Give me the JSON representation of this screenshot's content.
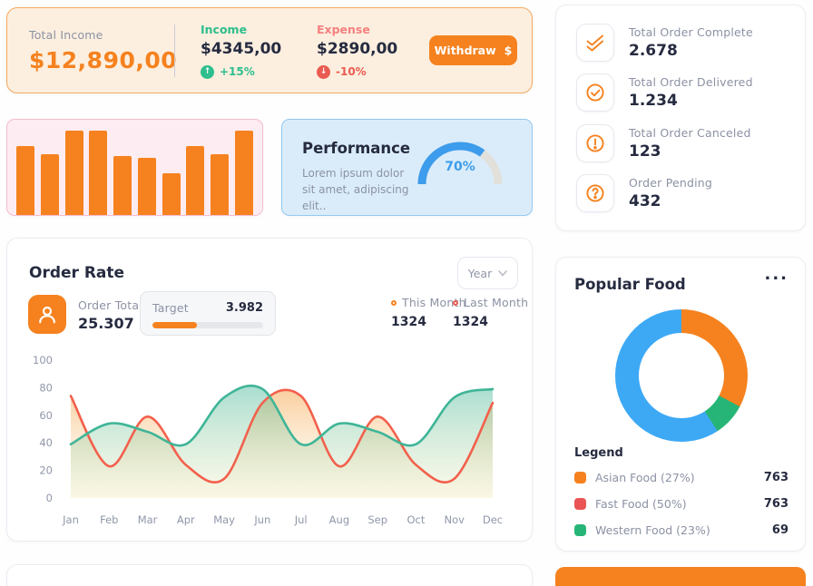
{
  "colors": {
    "accent_orange": "#f5821f",
    "navy_text": "#262b40",
    "gray_text": "#8c92a4",
    "green": "#2dbe8d",
    "red": "#ea5b51",
    "salmon_label": "#f58080",
    "peach_bg": "#fcefdf",
    "pink_bg": "#fdecf1",
    "blue_bg": "#daecfa",
    "gauge_blue": "#3d9cec",
    "donut_blue": "#3da9f5",
    "donut_green": "#27b577",
    "legend_red": "#ea5455",
    "line_red": "#f2604c",
    "line_green": "#3fb597"
  },
  "income_card": {
    "total_label": "Total Income",
    "total_value": "$12,890,00",
    "income_label": "Income",
    "income_value": "$4345,00",
    "income_change": "+15%",
    "income_arrow": "↑",
    "expense_label": "Expense",
    "expense_value": "$2890,00",
    "expense_change": "-10%",
    "expense_arrow": "↓",
    "withdraw_label": "Withdraw",
    "withdraw_symbol": "$"
  },
  "performance": {
    "title": "Performance",
    "description": "Lorem ipsum dolor sit amet, adipiscing elit..",
    "percent": 70,
    "percent_label": "70%"
  },
  "order_stats": [
    {
      "icon": "double-check-icon",
      "label": "Total Order Complete",
      "value": "2.678"
    },
    {
      "icon": "check-circle-icon",
      "label": "Total Order Delivered",
      "value": "1.234"
    },
    {
      "icon": "alert-circle-icon",
      "label": "Total Order Canceled",
      "value": "123"
    },
    {
      "icon": "help-circle-icon",
      "label": "Order Pending",
      "value": "432"
    }
  ],
  "order_rate": {
    "title": "Order Rate",
    "period_selected": "Year",
    "order_total_label": "Order Total",
    "order_total_value": "25.307",
    "target_label": "Target",
    "target_value": "3.982",
    "target_progress_percent": 40,
    "this_month_label": "This Month",
    "this_month_value": "1324",
    "this_month_marker_color": "#f5821f",
    "last_month_label": "Last Month",
    "last_month_value": "1324",
    "last_month_marker_color": "#ea5b51"
  },
  "popular_food": {
    "title": "Popular Food",
    "menu_label": "...",
    "legend_title": "Legend",
    "legend": [
      {
        "label": "Asian Food (27%)",
        "value": "763",
        "color": "#f5821f"
      },
      {
        "label": "Fast Food (50%)",
        "value": "763",
        "color": "#ea5455"
      },
      {
        "label": "Western Food (23%)",
        "value": "69",
        "color": "#27b577"
      }
    ]
  },
  "chart_data": [
    {
      "id": "income-mini-bars",
      "type": "bar",
      "title": "",
      "values_percent_height": [
        72,
        64,
        89,
        89,
        62,
        60,
        44,
        72,
        64,
        89
      ],
      "color": "#f5821f",
      "grid": false
    },
    {
      "id": "order-rate-line",
      "type": "line",
      "title": "Order Rate",
      "x": [
        "Jan",
        "Feb",
        "Mar",
        "Apr",
        "May",
        "Jun",
        "Jul",
        "Aug",
        "Sep",
        "Oct",
        "Nov",
        "Dec"
      ],
      "ylim": [
        0,
        100
      ],
      "yticks": [
        0,
        20,
        40,
        60,
        80,
        100
      ],
      "grid": false,
      "legend_position": "top-right",
      "series": [
        {
          "name": "This Month",
          "color": "#f2604c",
          "area_top": "rgba(246,166,80,0.55)",
          "area_bottom": "rgba(250,240,205,0.15)",
          "values": [
            74,
            23,
            59,
            24,
            14,
            69,
            74,
            23,
            59,
            24,
            14,
            69
          ]
        },
        {
          "name": "Last Month",
          "color": "#3fb597",
          "area_top": "rgba(63,181,151,0.45)",
          "area_bottom": "rgba(240,233,180,0.28)",
          "values": [
            39,
            54,
            48,
            39,
            73,
            79,
            39,
            54,
            48,
            39,
            73,
            79
          ]
        }
      ]
    },
    {
      "id": "popular-food-donut",
      "type": "pie",
      "title": "Popular Food",
      "segments": [
        {
          "color": "#f5821f",
          "deg": [
            0,
            118
          ]
        },
        {
          "color": "#27b577",
          "deg": [
            118,
            147
          ]
        },
        {
          "color": "#3da9f5",
          "deg": [
            147,
            360
          ]
        }
      ]
    },
    {
      "id": "performance-gauge",
      "type": "gauge",
      "percent": 70,
      "color": "#3d9cec",
      "track_color": "#e2e0da"
    }
  ]
}
